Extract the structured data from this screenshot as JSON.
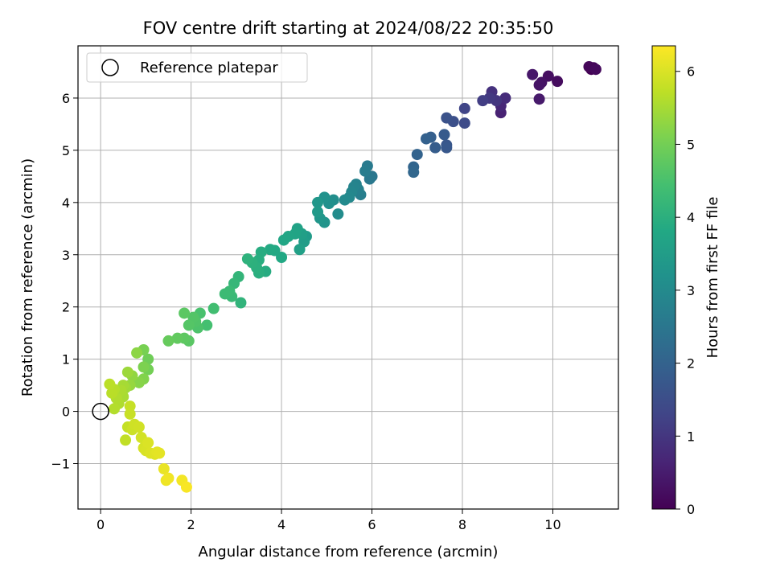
{
  "chart_data": {
    "type": "scatter",
    "title": "FOV centre drift starting at 2024/08/22 20:35:50",
    "xlabel": "Angular distance from reference (arcmin)",
    "ylabel": "Rotation from reference (arcmin)",
    "xlim": [
      -0.5,
      11.45
    ],
    "ylim": [
      -1.87,
      7.0
    ],
    "xticks": [
      0,
      2,
      4,
      6,
      8,
      10
    ],
    "yticks": [
      -1,
      0,
      1,
      2,
      3,
      4,
      5,
      6
    ],
    "grid": true,
    "legend": {
      "position": "top-left",
      "entries": [
        "Reference platepar"
      ]
    },
    "reference_point": {
      "x": 0,
      "y": 0,
      "label": "Reference platepar"
    },
    "colorbar": {
      "label": "Hours from first FF file",
      "colormap": "viridis",
      "range": [
        0,
        6.35
      ],
      "ticks": [
        0,
        1,
        2,
        3,
        4,
        5,
        6
      ]
    },
    "points": [
      [
        10.85,
        6.55,
        0.0
      ],
      [
        10.9,
        6.58,
        0.05
      ],
      [
        10.8,
        6.6,
        0.1
      ],
      [
        10.95,
        6.55,
        0.15
      ],
      [
        10.1,
        6.32,
        0.2
      ],
      [
        9.9,
        6.42,
        0.25
      ],
      [
        9.75,
        6.3,
        0.3
      ],
      [
        9.7,
        6.25,
        0.35
      ],
      [
        9.55,
        6.45,
        0.4
      ],
      [
        9.7,
        5.98,
        0.45
      ],
      [
        8.85,
        5.72,
        0.6
      ],
      [
        8.85,
        5.85,
        0.7
      ],
      [
        8.95,
        6.0,
        0.8
      ],
      [
        8.65,
        6.12,
        0.9
      ],
      [
        8.75,
        5.95,
        1.0
      ],
      [
        8.6,
        6.0,
        1.05
      ],
      [
        8.45,
        5.95,
        1.15
      ],
      [
        8.05,
        5.8,
        1.3
      ],
      [
        8.05,
        5.52,
        1.45
      ],
      [
        7.8,
        5.55,
        1.55
      ],
      [
        7.65,
        5.62,
        1.6
      ],
      [
        7.65,
        5.1,
        1.7
      ],
      [
        7.65,
        5.05,
        1.75
      ],
      [
        7.6,
        5.3,
        1.8
      ],
      [
        7.4,
        5.05,
        1.85
      ],
      [
        7.3,
        5.25,
        1.9
      ],
      [
        7.2,
        5.22,
        1.95
      ],
      [
        7.0,
        4.92,
        2.0
      ],
      [
        6.92,
        4.68,
        2.05
      ],
      [
        6.92,
        4.58,
        2.1
      ],
      [
        6.0,
        4.5,
        2.5
      ],
      [
        5.95,
        4.45,
        2.55
      ],
      [
        5.9,
        4.7,
        2.6
      ],
      [
        5.85,
        4.6,
        2.65
      ],
      [
        5.75,
        4.15,
        2.7
      ],
      [
        5.7,
        4.25,
        2.75
      ],
      [
        5.65,
        4.35,
        2.8
      ],
      [
        5.6,
        4.3,
        2.85
      ],
      [
        5.55,
        4.2,
        2.9
      ],
      [
        5.5,
        4.1,
        2.95
      ],
      [
        5.4,
        4.05,
        3.0
      ],
      [
        5.25,
        3.78,
        3.05
      ],
      [
        5.15,
        4.05,
        3.1
      ],
      [
        5.05,
        3.98,
        3.15
      ],
      [
        4.95,
        4.1,
        3.2
      ],
      [
        4.95,
        3.62,
        3.25
      ],
      [
        4.85,
        3.7,
        3.3
      ],
      [
        4.8,
        4.0,
        3.35
      ],
      [
        4.8,
        3.82,
        3.4
      ],
      [
        4.55,
        3.35,
        3.45
      ],
      [
        4.5,
        3.25,
        3.5
      ],
      [
        4.45,
        3.4,
        3.55
      ],
      [
        4.4,
        3.1,
        3.6
      ],
      [
        4.35,
        3.5,
        3.65
      ],
      [
        4.3,
        3.4,
        3.7
      ],
      [
        4.15,
        3.35,
        3.72
      ],
      [
        4.05,
        3.28,
        3.75
      ],
      [
        4.0,
        2.95,
        3.8
      ],
      [
        3.85,
        3.08,
        3.82
      ],
      [
        3.75,
        3.1,
        3.85
      ],
      [
        3.65,
        2.68,
        3.9
      ],
      [
        3.55,
        3.05,
        3.92
      ],
      [
        3.5,
        2.9,
        3.95
      ],
      [
        3.5,
        2.65,
        3.98
      ],
      [
        3.45,
        2.75,
        4.0
      ],
      [
        3.35,
        2.85,
        4.02
      ],
      [
        3.25,
        2.92,
        4.05
      ],
      [
        3.1,
        2.08,
        4.1
      ],
      [
        3.05,
        2.58,
        4.15
      ],
      [
        2.95,
        2.45,
        4.2
      ],
      [
        2.9,
        2.2,
        4.25
      ],
      [
        2.85,
        2.3,
        4.28
      ],
      [
        2.75,
        2.25,
        4.32
      ],
      [
        2.5,
        1.97,
        4.4
      ],
      [
        2.35,
        1.65,
        4.45
      ],
      [
        2.2,
        1.88,
        4.5
      ],
      [
        2.15,
        1.6,
        4.55
      ],
      [
        2.1,
        1.72,
        4.6
      ],
      [
        2.05,
        1.8,
        4.62
      ],
      [
        1.95,
        1.65,
        4.65
      ],
      [
        1.95,
        1.35,
        4.7
      ],
      [
        1.85,
        1.88,
        4.72
      ],
      [
        1.85,
        1.4,
        4.75
      ],
      [
        1.7,
        1.4,
        4.8
      ],
      [
        1.5,
        1.35,
        4.85
      ],
      [
        1.05,
        1.0,
        4.95
      ],
      [
        1.05,
        0.8,
        5.0
      ],
      [
        0.95,
        1.18,
        5.05
      ],
      [
        0.95,
        0.85,
        5.1
      ],
      [
        0.95,
        0.62,
        5.15
      ],
      [
        0.85,
        0.55,
        5.2
      ],
      [
        0.8,
        1.12,
        5.25
      ],
      [
        0.7,
        0.68,
        5.3
      ],
      [
        0.65,
        0.5,
        5.35
      ],
      [
        0.6,
        0.75,
        5.4
      ],
      [
        0.55,
        0.45,
        5.45
      ],
      [
        0.5,
        0.5,
        5.5
      ],
      [
        0.5,
        0.28,
        5.52
      ],
      [
        0.45,
        0.4,
        5.55
      ],
      [
        0.4,
        0.15,
        5.58
      ],
      [
        0.35,
        0.25,
        5.6
      ],
      [
        0.3,
        0.05,
        5.62
      ],
      [
        0.3,
        0.42,
        5.65
      ],
      [
        0.25,
        0.35,
        5.68
      ],
      [
        0.2,
        0.52,
        5.7
      ],
      [
        0.55,
        -0.55,
        5.75
      ],
      [
        0.6,
        -0.3,
        5.78
      ],
      [
        0.65,
        0.1,
        5.8
      ],
      [
        0.65,
        -0.05,
        5.82
      ],
      [
        0.7,
        -0.35,
        5.85
      ],
      [
        0.75,
        -0.25,
        5.88
      ],
      [
        0.85,
        -0.3,
        5.9
      ],
      [
        0.9,
        -0.5,
        5.92
      ],
      [
        0.95,
        -0.7,
        5.95
      ],
      [
        1.0,
        -0.75,
        5.98
      ],
      [
        1.05,
        -0.6,
        6.0
      ],
      [
        1.1,
        -0.8,
        6.02
      ],
      [
        1.2,
        -0.82,
        6.05
      ],
      [
        1.25,
        -0.78,
        6.08
      ],
      [
        1.3,
        -0.8,
        6.1
      ],
      [
        1.4,
        -1.1,
        6.15
      ],
      [
        1.45,
        -1.32,
        6.2
      ],
      [
        1.5,
        -1.28,
        6.22
      ],
      [
        1.8,
        -1.32,
        6.25
      ],
      [
        1.9,
        -1.45,
        6.3
      ]
    ]
  }
}
